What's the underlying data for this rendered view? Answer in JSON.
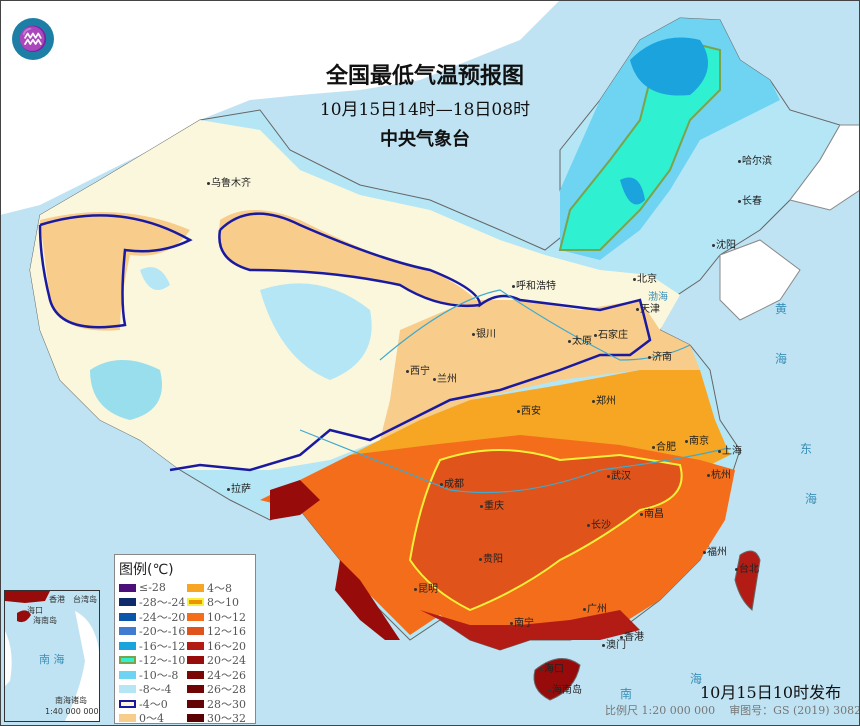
{
  "header": {
    "title": "全国最低气温预报图",
    "period": "10月15日14时—18日08时",
    "agency": "中央气象台",
    "logo_icon": "cma-logo-icon"
  },
  "cities": [
    {
      "name": "乌鲁木齐"
    },
    {
      "name": "哈尔滨"
    },
    {
      "name": "长春"
    },
    {
      "name": "沈阳"
    },
    {
      "name": "呼和浩特"
    },
    {
      "name": "北京"
    },
    {
      "name": "天津"
    },
    {
      "name": "石家庄"
    },
    {
      "name": "太原"
    },
    {
      "name": "银川"
    },
    {
      "name": "济南"
    },
    {
      "name": "西宁"
    },
    {
      "name": "兰州"
    },
    {
      "name": "郑州"
    },
    {
      "name": "西安"
    },
    {
      "name": "合肥"
    },
    {
      "name": "南京"
    },
    {
      "name": "上海"
    },
    {
      "name": "拉萨"
    },
    {
      "name": "成都"
    },
    {
      "name": "重庆"
    },
    {
      "name": "武汉"
    },
    {
      "name": "杭州"
    },
    {
      "name": "南昌"
    },
    {
      "name": "长沙"
    },
    {
      "name": "贵阳"
    },
    {
      "name": "福州"
    },
    {
      "name": "台北"
    },
    {
      "name": "昆明"
    },
    {
      "name": "南宁"
    },
    {
      "name": "广州"
    },
    {
      "name": "香港"
    },
    {
      "name": "澳门"
    },
    {
      "name": "海口"
    },
    {
      "name": "海南岛"
    }
  ],
  "seas": [
    "渤海",
    "黄",
    "海",
    "东",
    "海",
    "南",
    "海"
  ],
  "legend": {
    "title": "图例(℃)",
    "items": [
      {
        "label": "≤-28",
        "color": "#4b0f7a"
      },
      {
        "label": "-28～-24",
        "color": "#0d2a6b"
      },
      {
        "label": "-24～-20",
        "color": "#0b56a8"
      },
      {
        "label": "-20～-16",
        "color": "#3f7bd1"
      },
      {
        "label": "-16～-12",
        "color": "#1aa3dd"
      },
      {
        "label": "-12～-10",
        "color": "#2ff0d0",
        "outline": "#7aa34a"
      },
      {
        "label": "-10～-8",
        "color": "#6fd3f2"
      },
      {
        "label": "-8～-4",
        "color": "#b4e6f5"
      },
      {
        "label": "-4～0",
        "color": "#fbf7dc",
        "outline": "#1a1aa0"
      },
      {
        "label": "0～4",
        "color": "#f8cc8a"
      },
      {
        "label": "4～8",
        "color": "#f6a623"
      },
      {
        "label": "8～10",
        "color": "#ee9400",
        "outline": "#f5f03a"
      },
      {
        "label": "10～12",
        "color": "#f46d1a"
      },
      {
        "label": "12～16",
        "color": "#e0531a"
      },
      {
        "label": "16～20",
        "color": "#b31c14"
      },
      {
        "label": "20～24",
        "color": "#980b0b"
      },
      {
        "label": "24～26",
        "color": "#7a0606"
      },
      {
        "label": "26～28",
        "color": "#6e0404"
      },
      {
        "label": "28～30",
        "color": "#640303"
      },
      {
        "label": "30～32",
        "color": "#5a0202"
      }
    ]
  },
  "inset": {
    "label_haikou": "海口",
    "label_hainan": "海南岛",
    "label_sea": "南 海",
    "label_islands": "南海诸岛",
    "scale": "1:40 000 000",
    "label_taiwan": "台湾岛",
    "label_hk": "香港"
  },
  "footer": {
    "issued": "10月15日10时发布",
    "scale": "比例尺 1:20 000 000",
    "review_no": "审图号：GS (2019) 3082号"
  }
}
